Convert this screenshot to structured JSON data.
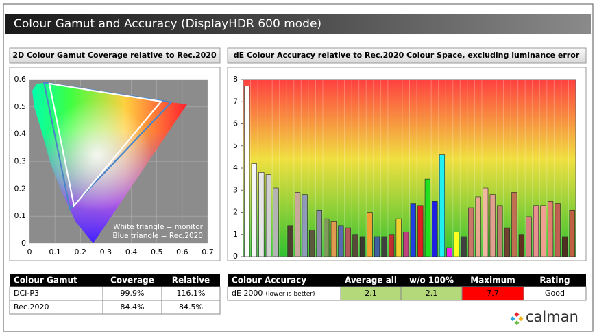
{
  "header": {
    "title": "Colour Gamut and Accuracy (DisplayHDR 600 mode)"
  },
  "chart_data": [
    {
      "type": "gamut",
      "title": "2D Colour Gamut Coverage relative to Rec.2020",
      "annotations": [
        "White triangle = monitor",
        "Blue triangle = Rec.2020"
      ],
      "series": [
        {
          "color": "#4a86c8",
          "x": [
            0.557,
            0.057,
            0.159
          ],
          "y": [
            0.517,
            0.589,
            0.126
          ]
        },
        {
          "color": "#ffffff",
          "x": [
            0.517,
            0.078,
            0.175
          ],
          "y": [
            0.52,
            0.585,
            0.138
          ]
        }
      ],
      "xlim": [
        0,
        0.7
      ],
      "xticks": [
        0,
        0.1,
        0.2,
        0.3,
        0.4,
        0.5,
        0.6,
        0.7
      ],
      "ylim": [
        0,
        0.6
      ],
      "yticks": [
        0,
        0.1,
        0.2,
        0.3,
        0.4,
        0.5,
        0.6
      ],
      "grid": true
    },
    {
      "type": "bar",
      "title": "dE Colour Accuracy relative to Rec.2020 Colour Space, excluding luminance error",
      "values": [
        7.7,
        4.2,
        3.8,
        3.7,
        3.1,
        0,
        1.4,
        2.9,
        2.8,
        1.2,
        2.1,
        1.7,
        1.6,
        1.4,
        1.3,
        1.0,
        0.9,
        2.0,
        0.9,
        0.9,
        1.0,
        1.7,
        1.1,
        2.4,
        2.3,
        3.5,
        2.5,
        4.6,
        0.4,
        1.1,
        0.9,
        2.2,
        2.7,
        3.1,
        2.8,
        2.3,
        1.3,
        2.9,
        1.0,
        1.8,
        2.3,
        2.3,
        2.5,
        2.4,
        0.9,
        2.1
      ],
      "colors": [
        "#ffffff",
        "#f5f5f5",
        "#e6e6e6",
        "#d0d0d0",
        "#b4b4b4",
        "#202020",
        "#4d4030",
        "#c8a89a",
        "#8f9ab8",
        "#5c5a3c",
        "#8b8ba6",
        "#7f9a5a",
        "#e09a50",
        "#5a6ab0",
        "#b45a5a",
        "#5a4a3a",
        "#3a3a30",
        "#f0a030",
        "#4060a0",
        "#404040",
        "#c03030",
        "#f0d030",
        "#c04080",
        "#2040e0",
        "#e02020",
        "#20e020",
        "#2020e0",
        "#20f0f0",
        "#f020f0",
        "#ffff20",
        "#404040",
        "#c87868",
        "#e8a890",
        "#f0b8a0",
        "#e0a090",
        "#c08070",
        "#704030",
        "#c07050",
        "#603020",
        "#d88080",
        "#e89090",
        "#f0a090",
        "#e08070",
        "#c06050",
        "#503020",
        "#c06040"
      ],
      "ylim": [
        0,
        8
      ],
      "yticks": [
        0,
        1,
        2,
        3,
        4,
        5,
        6,
        7,
        8
      ],
      "grid": false
    }
  ],
  "gamut_table": {
    "columns": [
      "Colour Gamut",
      "Coverage",
      "Relative"
    ],
    "rows": [
      [
        "DCI-P3",
        "99.9%",
        "116.1%"
      ],
      [
        "Rec.2020",
        "84.4%",
        "84.5%"
      ]
    ]
  },
  "accuracy_table": {
    "columns": [
      "Colour Accuracy",
      "Average all",
      "w/o 100%",
      "Maximum",
      "Rating"
    ],
    "row": {
      "label": "dE 2000",
      "note": "(lower is better)",
      "values": [
        "2.1",
        "2.1",
        "7.7",
        "Good"
      ]
    }
  },
  "logo": "calman"
}
